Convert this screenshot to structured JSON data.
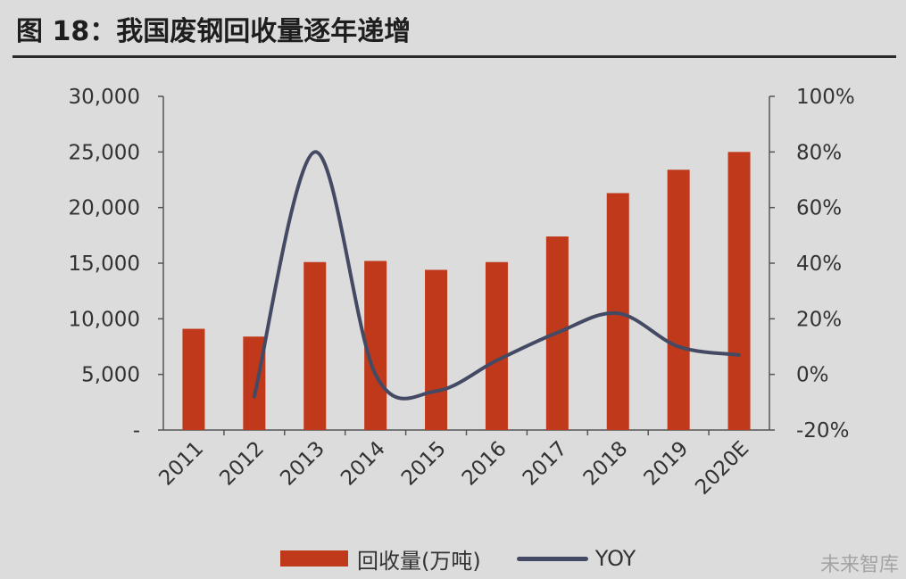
{
  "title": "图 18：我国废钢回收量逐年递增",
  "watermark": "未来智库",
  "chart_data": {
    "type": "bar",
    "categories": [
      "2011",
      "2012",
      "2013",
      "2014",
      "2015",
      "2016",
      "2017",
      "2018",
      "2019",
      "2020E"
    ],
    "series": [
      {
        "name": "回收量(万吨)",
        "type": "bar",
        "axis": "left",
        "color": "#c0391a",
        "values": [
          9100,
          8400,
          15100,
          15200,
          14400,
          15100,
          17400,
          21300,
          23400,
          25000
        ]
      },
      {
        "name": "YOY",
        "type": "line",
        "axis": "right",
        "color": "#444a63",
        "values": [
          null,
          -8,
          80,
          0,
          -6,
          5,
          15,
          22,
          10,
          7
        ]
      }
    ],
    "y_left": {
      "ylim": [
        0,
        30000
      ],
      "ticks": [
        0,
        5000,
        10000,
        15000,
        20000,
        25000,
        30000
      ],
      "tick_labels": [
        "-",
        "5,000",
        "10,000",
        "15,000",
        "20,000",
        "25,000",
        "30,000"
      ]
    },
    "y_right": {
      "ylim": [
        -20,
        100
      ],
      "ticks": [
        -20,
        0,
        20,
        40,
        60,
        80,
        100
      ],
      "tick_labels": [
        "-20%",
        "0%",
        "20%",
        "40%",
        "60%",
        "80%",
        "100%"
      ]
    },
    "grid": false,
    "legend_position": "bottom-center"
  }
}
